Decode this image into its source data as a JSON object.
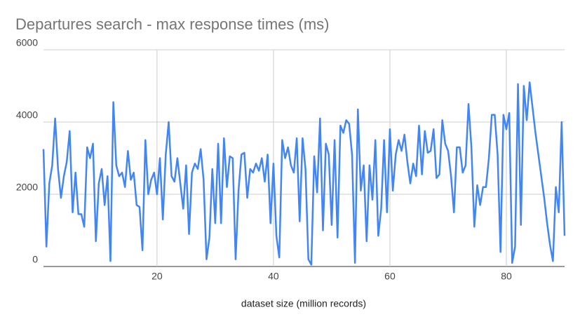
{
  "chart_data": {
    "type": "line",
    "title": "Departures search - max response times (ms)",
    "x_label": "dataset size (million records)",
    "xlim": [
      0.5,
      90
    ],
    "ylim": [
      0,
      6000
    ],
    "xticks": [
      20,
      40,
      60,
      80
    ],
    "yticks": [
      0,
      2000,
      4000,
      6000
    ],
    "grid": true,
    "x": [
      0.5,
      1,
      1.5,
      2,
      2.5,
      3,
      3.5,
      4,
      4.5,
      5,
      5.5,
      6,
      6.5,
      7,
      7.5,
      8,
      8.5,
      9,
      9.5,
      10,
      10.5,
      11,
      11.5,
      12,
      12.5,
      13,
      13.5,
      14,
      14.5,
      15,
      15.5,
      16,
      16.5,
      17,
      17.5,
      18,
      18.5,
      19,
      19.5,
      20,
      20.5,
      21,
      21.5,
      22,
      22.5,
      23,
      23.5,
      24,
      24.5,
      25,
      25.5,
      26,
      26.5,
      27,
      27.5,
      28,
      28.5,
      29,
      29.5,
      30,
      30.5,
      31,
      31.5,
      32,
      32.5,
      33,
      33.5,
      34,
      34.5,
      35,
      35.5,
      36,
      36.5,
      37,
      37.5,
      38,
      38.5,
      39,
      39.5,
      40,
      40.5,
      41,
      41.5,
      42,
      42.5,
      43,
      43.5,
      44,
      44.5,
      45,
      45.5,
      46,
      46.5,
      47,
      47.5,
      48,
      48.5,
      49,
      49.5,
      50,
      50.5,
      51,
      51.5,
      52,
      52.5,
      53,
      53.5,
      54,
      54.5,
      55,
      55.5,
      56,
      56.5,
      57,
      57.5,
      58,
      58.5,
      59,
      59.5,
      60,
      60.5,
      61,
      61.5,
      62,
      62.5,
      63,
      63.5,
      64,
      64.5,
      65,
      65.5,
      66,
      66.5,
      67,
      67.5,
      68,
      68.5,
      69,
      69.5,
      70,
      70.5,
      71,
      71.5,
      72,
      72.5,
      73,
      73.5,
      74,
      74.5,
      75,
      75.5,
      76,
      76.5,
      77,
      77.5,
      78,
      78.5,
      79,
      79.5,
      80,
      80.5,
      81,
      81.5,
      82,
      82.5,
      83,
      83.5,
      84,
      84.5,
      85,
      85.5,
      86,
      86.5,
      87,
      87.5,
      88,
      88.5,
      89,
      89.5,
      90
    ],
    "series": [
      {
        "color": "#4285f4",
        "values": [
          3250,
          550,
          2300,
          2800,
          4100,
          2700,
          1900,
          2500,
          2900,
          3750,
          1500,
          2600,
          1450,
          1450,
          1100,
          3300,
          3000,
          3400,
          700,
          2300,
          2700,
          1700,
          2500,
          150,
          4550,
          2800,
          2500,
          2600,
          2200,
          3200,
          2400,
          2600,
          1700,
          1650,
          450,
          3500,
          2000,
          2400,
          2600,
          2000,
          3000,
          1300,
          3100,
          4000,
          2500,
          2350,
          3000,
          2300,
          1600,
          2800,
          900,
          2600,
          2850,
          2700,
          3250,
          2400,
          200,
          800,
          2700,
          1200,
          3400,
          1200,
          3550,
          2200,
          3050,
          3000,
          200,
          2100,
          3100,
          3150,
          1900,
          2700,
          2600,
          2850,
          2650,
          3000,
          2350,
          3100,
          1200,
          2850,
          850,
          250,
          3500,
          3000,
          3300,
          2800,
          2600,
          3550,
          1250,
          3550,
          2700,
          200,
          50,
          3050,
          2050,
          4100,
          1000,
          3400,
          3100,
          1150,
          3500,
          800,
          3900,
          3700,
          4050,
          3950,
          3100,
          100,
          4350,
          2100,
          2800,
          700,
          2800,
          1850,
          3500,
          850,
          1600,
          3500,
          1500,
          3800,
          2100,
          3100,
          3500,
          3200,
          3650,
          2900,
          2300,
          2850,
          2500,
          3900,
          2550,
          3750,
          3150,
          3200,
          3800,
          2450,
          2550,
          4050,
          3400,
          3200,
          2500,
          1500,
          3300,
          3300,
          2600,
          2800,
          4500,
          3300,
          1100,
          2250,
          1700,
          2200,
          2200,
          3000,
          4200,
          4200,
          3100,
          400,
          4200,
          3800,
          4250,
          100,
          550,
          5050,
          1150,
          5000,
          4050,
          5100,
          4400,
          3700,
          3100,
          2500,
          1900,
          1200,
          600,
          150,
          2200,
          1500,
          4000,
          850
        ]
      }
    ]
  }
}
